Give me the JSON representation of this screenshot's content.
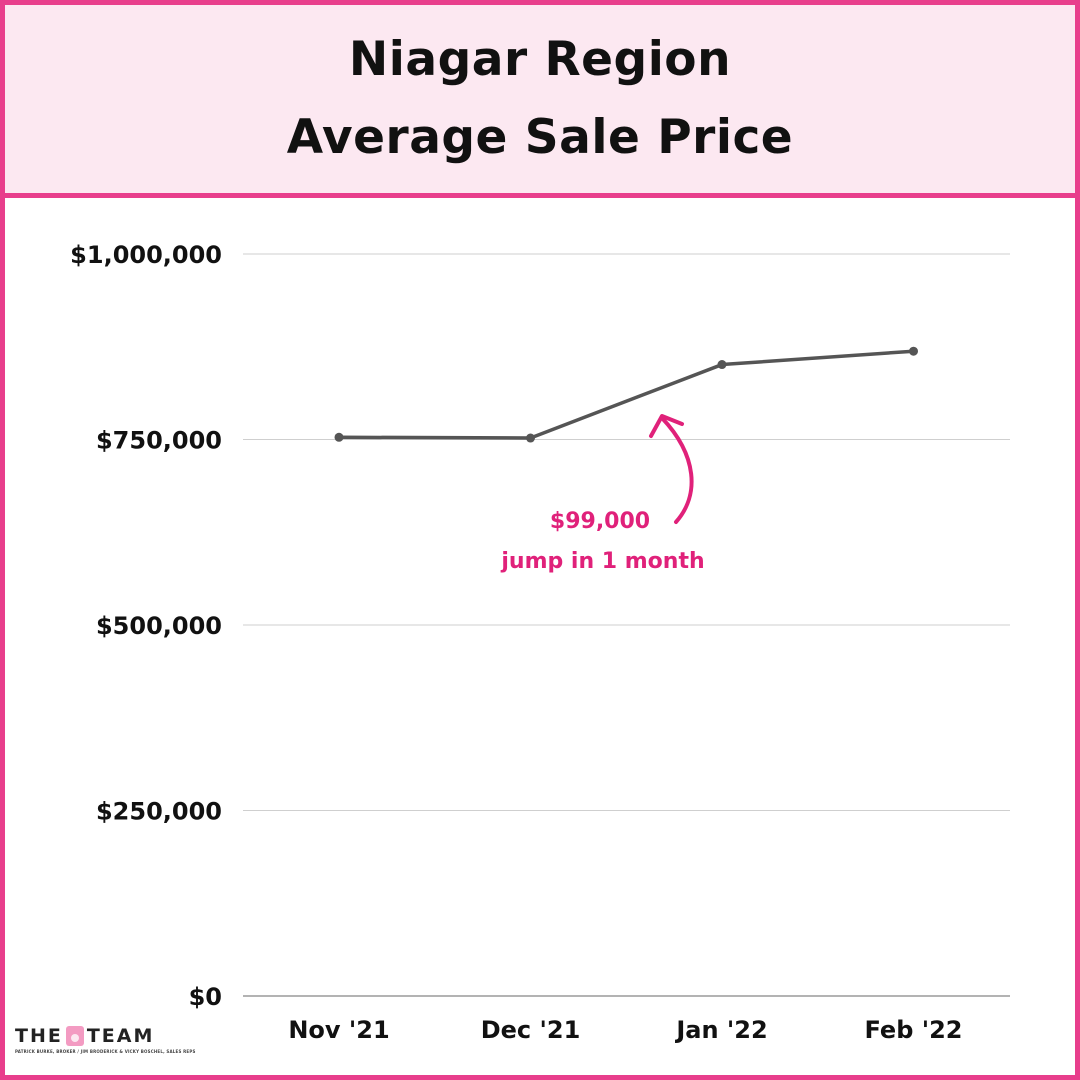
{
  "header": {
    "title_line1": "Niagar Region",
    "title_line2": "Average Sale Price"
  },
  "chart_data": {
    "type": "line",
    "title": "Niagar Region Average Sale Price",
    "categories": [
      "Nov '21",
      "Dec '21",
      "Jan '22",
      "Feb '22"
    ],
    "series": [
      {
        "values": [
          753000,
          752000,
          851000,
          869000
        ]
      }
    ],
    "ylim": [
      0,
      1000000
    ],
    "yticks": [
      0,
      250000,
      500000,
      750000,
      1000000
    ],
    "ytick_labels": [
      "$0",
      "$250,000",
      "$500,000",
      "$750,000",
      "$1,000,000"
    ],
    "grid": true,
    "line_color": "#555555",
    "annotation": {
      "line1": "$99,000",
      "line2": "jump in 1 month",
      "color": "#e0217a"
    }
  },
  "branding": {
    "logo_text_left": "THE",
    "logo_text_right": "TEAM",
    "logo_subtext": "PATRICK BURKE, BROKER / JIM BRODERICK & VICKY BOSCHEL, SALES REPS"
  },
  "colors": {
    "frame": "#e83e8c",
    "header_bg": "#fce8f1",
    "accent": "#e0217a"
  }
}
